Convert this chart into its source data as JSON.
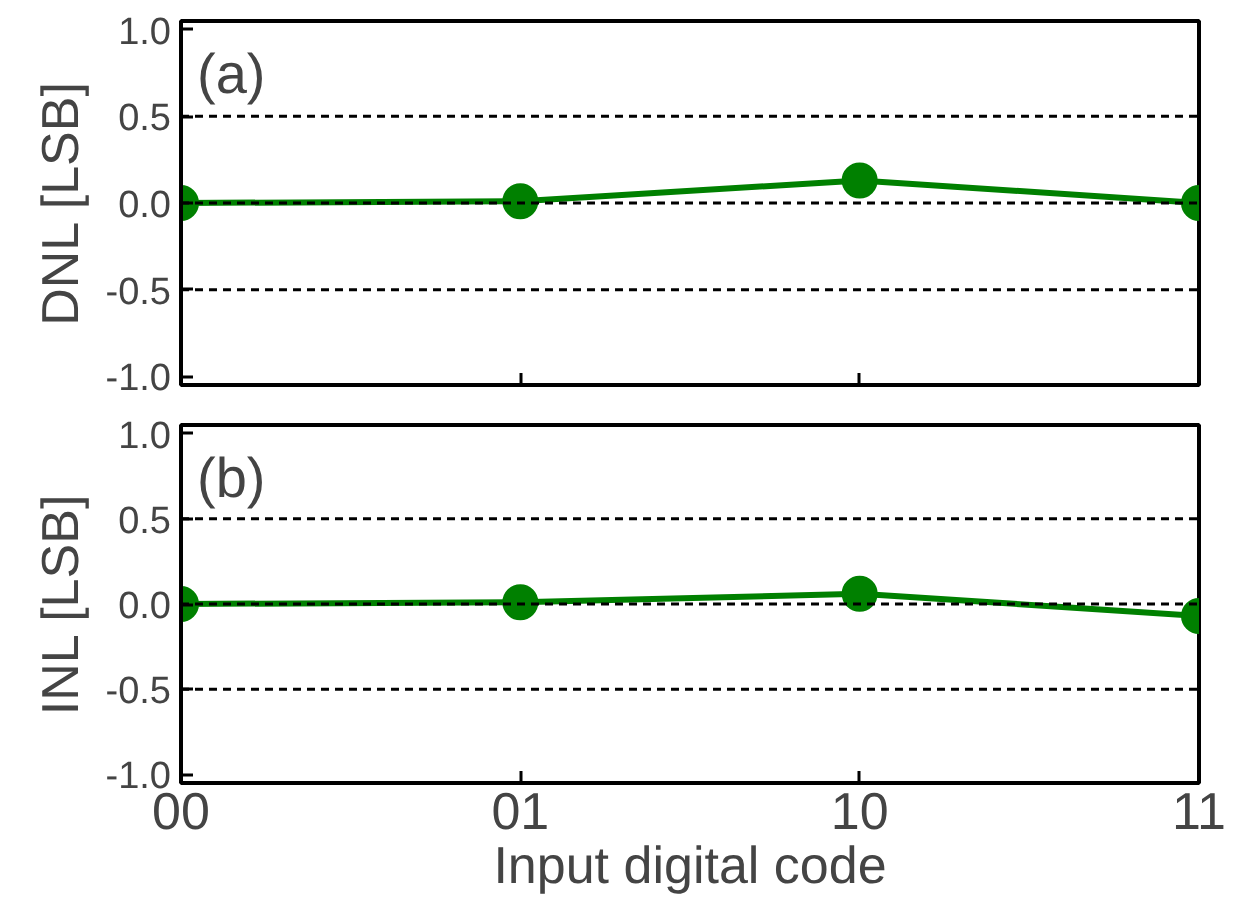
{
  "chart_data": [
    {
      "type": "line",
      "categories": [
        "00",
        "01",
        "10",
        "11"
      ],
      "ylabel": "DNL [LSB]",
      "annotations": [
        "(a)"
      ],
      "series": [
        {
          "color": "#008000",
          "values": [
            0.0,
            0.01,
            0.13,
            0.0
          ]
        }
      ],
      "ylim": [
        -1.05,
        1.05
      ],
      "yticks": [
        {
          "value": 1,
          "label": "1.0"
        },
        {
          "value": 0.5,
          "label": "0.5"
        },
        {
          "value": 0,
          "label": "0.0"
        },
        {
          "value": -0.5,
          "label": "-0.5"
        },
        {
          "value": -1,
          "label": "-1.0"
        }
      ],
      "ref_lines": [
        {
          "axis": "y",
          "value": 0.5,
          "line_style": "dashed",
          "color": "#000000"
        },
        {
          "axis": "y",
          "value": 0,
          "line_style": "dashed",
          "color": "#000000"
        },
        {
          "axis": "y",
          "value": -0.5,
          "line_style": "dashed",
          "color": "#000000"
        }
      ],
      "marker": "circle",
      "line_style": "solid",
      "grid": false,
      "tick_labels": "y"
    },
    {
      "type": "line",
      "categories": [
        "00",
        "01",
        "10",
        "11"
      ],
      "ylabel": "INL [LSB]",
      "xlabel": "Input digital code",
      "annotations": [
        "(b)"
      ],
      "series": [
        {
          "color": "#008000",
          "values": [
            0.0,
            0.01,
            0.06,
            -0.07
          ]
        }
      ],
      "ylim": [
        -1.05,
        1.05
      ],
      "yticks": [
        {
          "value": 1,
          "label": "1.0"
        },
        {
          "value": 0.5,
          "label": "0.5"
        },
        {
          "value": 0,
          "label": "0.0"
        },
        {
          "value": -0.5,
          "label": "-0.5"
        },
        {
          "value": -1,
          "label": "-1.0"
        }
      ],
      "ref_lines": [
        {
          "axis": "y",
          "value": 0.5,
          "line_style": "dashed",
          "color": "#000000"
        },
        {
          "axis": "y",
          "value": 0,
          "line_style": "dashed",
          "color": "#000000"
        },
        {
          "axis": "y",
          "value": -0.5,
          "line_style": "dashed",
          "color": "#000000"
        }
      ],
      "marker": "circle",
      "line_style": "solid",
      "grid": false
    }
  ]
}
